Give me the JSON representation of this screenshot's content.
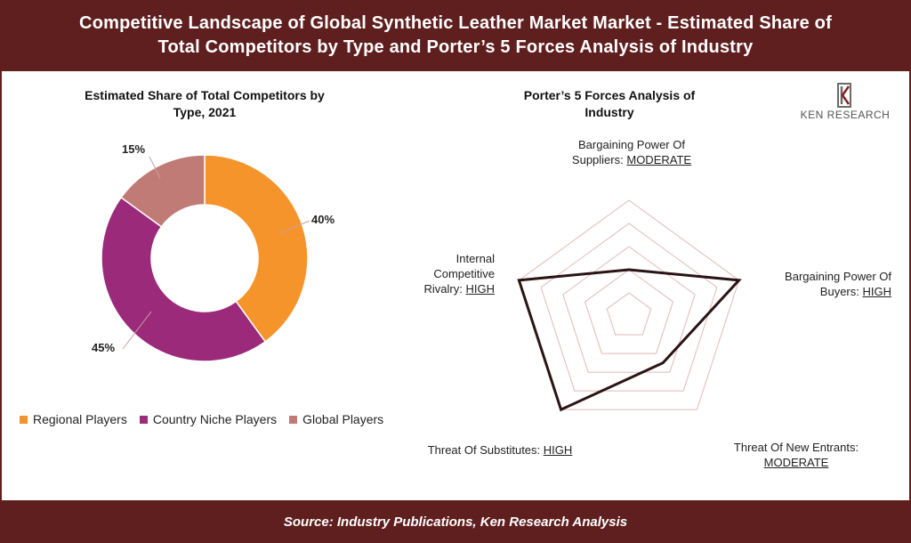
{
  "header": {
    "line1": "Competitive Landscape of Global Synthetic Leather Market Market - Estimated Share of",
    "line2": "Total Competitors by Type and Porter’s 5 Forces Analysis of Industry"
  },
  "footer": {
    "source": "Source: Industry Publications, Ken Research Analysis"
  },
  "logo": {
    "text": "KEN RESEARCH",
    "icon": "ken-research-k-icon"
  },
  "chart_data": [
    {
      "type": "pie",
      "subtype": "donut",
      "title_line1": "Estimated Share of Total Competitors by",
      "title_line2": "Type, 2021",
      "categories": [
        "Regional Players",
        "Country Niche Players",
        "Global Players"
      ],
      "values": [
        40,
        45,
        15
      ],
      "labels": [
        "40%",
        "45%",
        "15%"
      ],
      "colors": [
        "#f5942a",
        "#9b2a7a",
        "#c07b76"
      ],
      "legend_position": "bottom"
    },
    {
      "type": "radar",
      "title_line1": "Porter’s 5 Forces Analysis of",
      "title_line2": "Industry",
      "axes": [
        {
          "name": "Bargaining Power Of Suppliers:",
          "level": "MODERATE",
          "value": 0.4
        },
        {
          "name": "Bargaining Power Of Buyers:",
          "level": "HIGH",
          "value": 1.0
        },
        {
          "name": "Threat Of New Entrants:",
          "level": "MODERATE",
          "value": 0.5
        },
        {
          "name": "Threat Of Substitutes:",
          "level": "HIGH",
          "value": 1.0
        },
        {
          "name": "Internal Competitive Rivalry:",
          "level": "HIGH",
          "value": 1.0
        }
      ],
      "grid_rings": 5,
      "grid_color": "#e2b8b8",
      "series_color": "#2a1414"
    }
  ]
}
